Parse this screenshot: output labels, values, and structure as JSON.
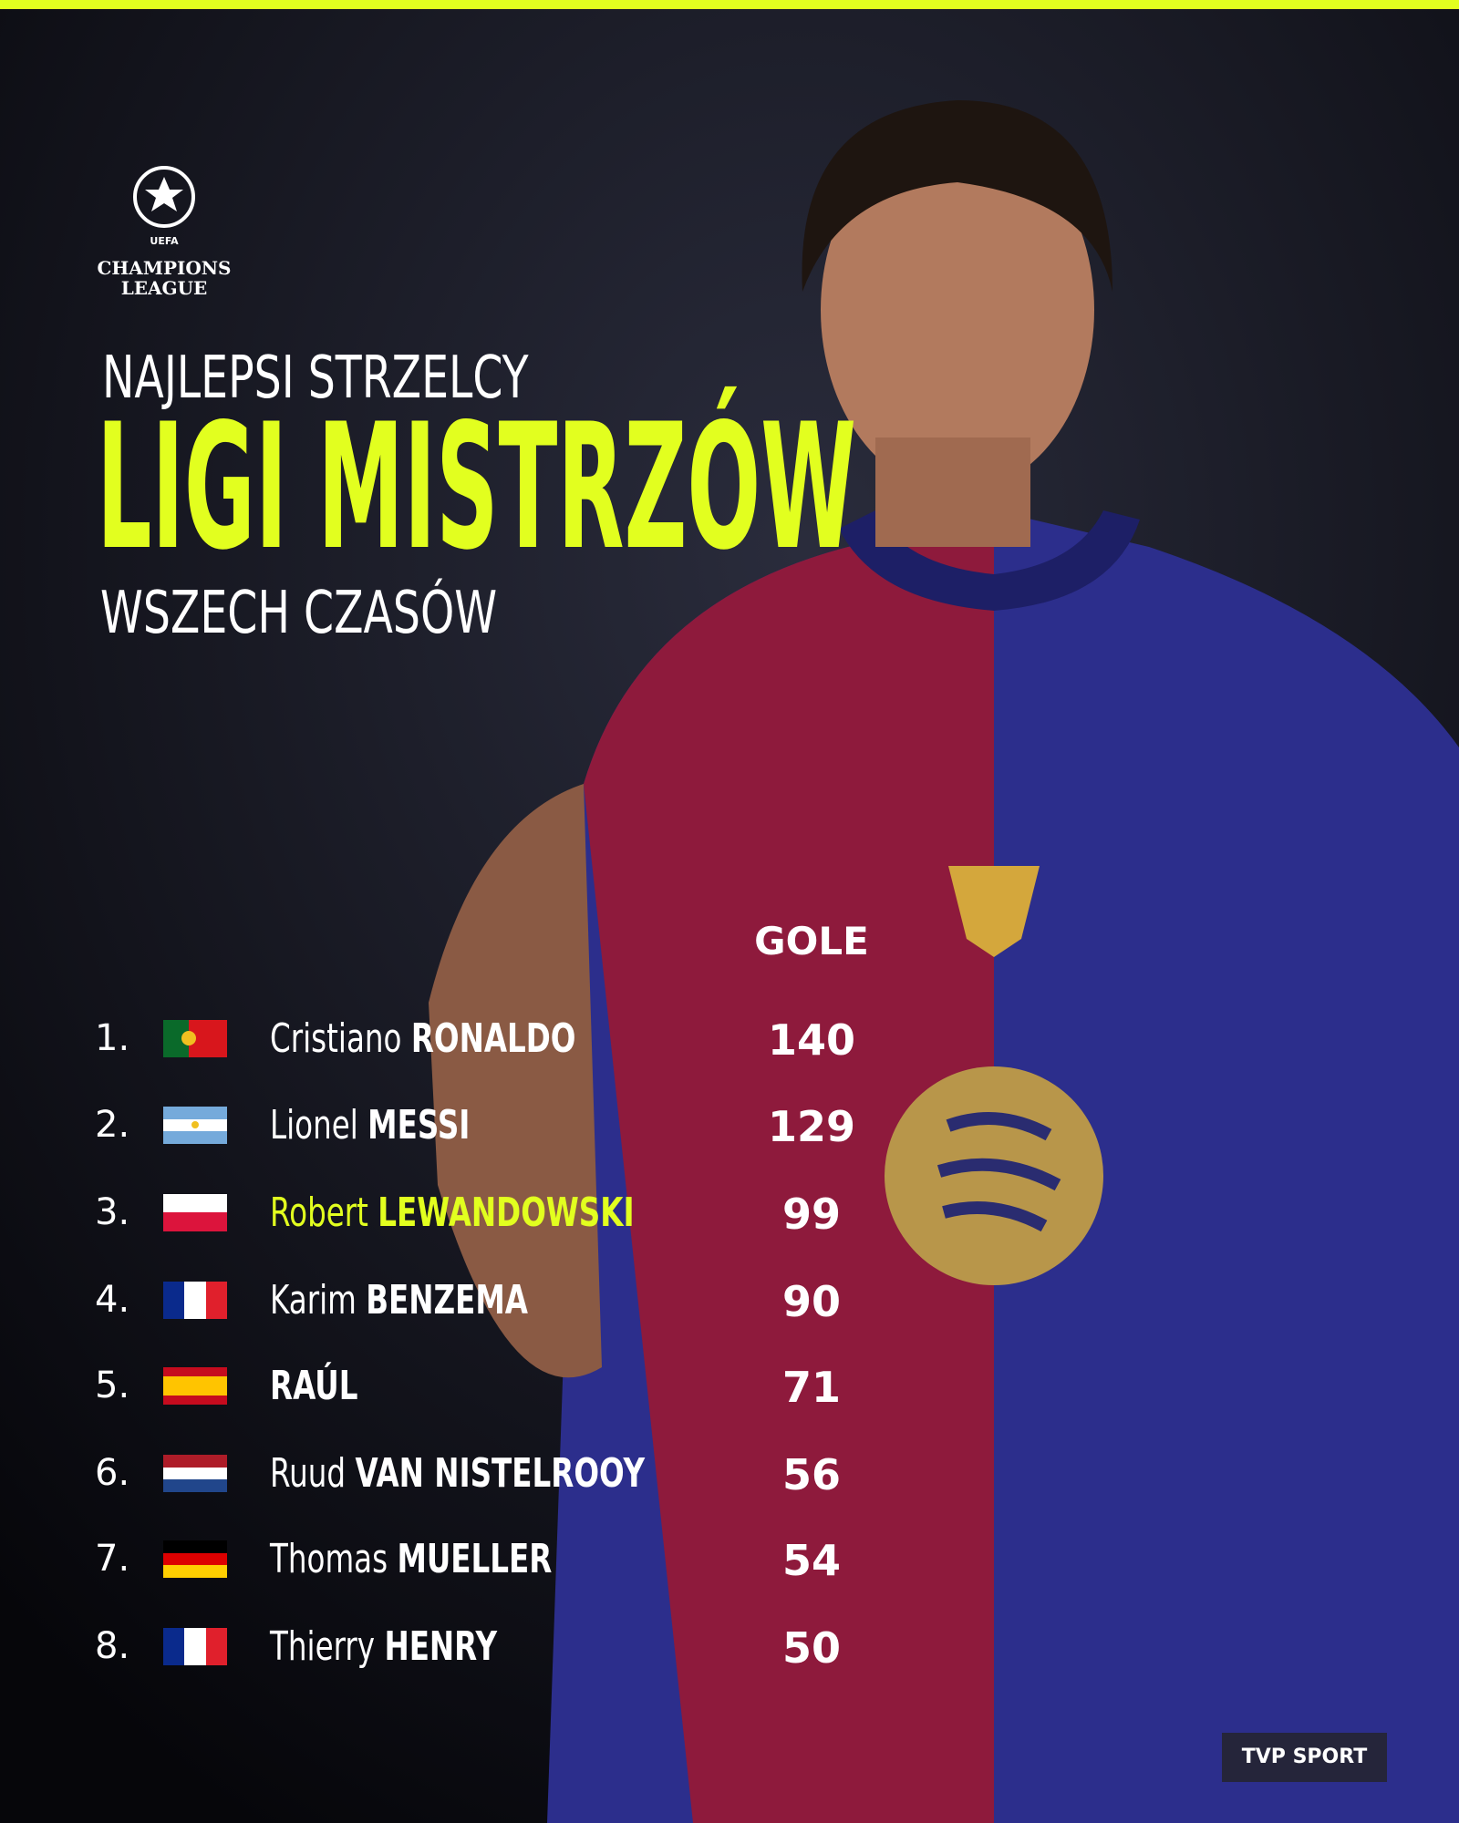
{
  "logo": {
    "top": "UEFA",
    "line1": "CHAMPIONS",
    "line2": "LEAGUE"
  },
  "header": {
    "kicker": "NAJLEPSI STRZELCY",
    "title": "LIGI MISTRZÓW",
    "subtitle": "WSZECH CZASÓW"
  },
  "table": {
    "column": "GOLE",
    "rows": [
      {
        "rank": "1.",
        "first": "Cristiano",
        "last": "RONALDO",
        "goals": 140
      },
      {
        "rank": "2.",
        "first": "Lionel",
        "last": "MESSI",
        "goals": 129
      },
      {
        "rank": "3.",
        "first": "Robert",
        "last": "LEWANDOWSKI",
        "goals": 99
      },
      {
        "rank": "4.",
        "first": "Karim",
        "last": "BENZEMA",
        "goals": 90
      },
      {
        "rank": "5.",
        "last": "RAÚL",
        "goals": 71
      },
      {
        "rank": "6.",
        "first": "Ruud",
        "last": "VAN NISTELROOY",
        "goals": 56
      },
      {
        "rank": "7.",
        "first": "Thomas",
        "last": "MUELLER",
        "goals": 54
      },
      {
        "rank": "8.",
        "first": "Thierry",
        "last": "HENRY",
        "goals": 50
      }
    ]
  },
  "footer": {
    "brand": "TVP SPORT"
  }
}
